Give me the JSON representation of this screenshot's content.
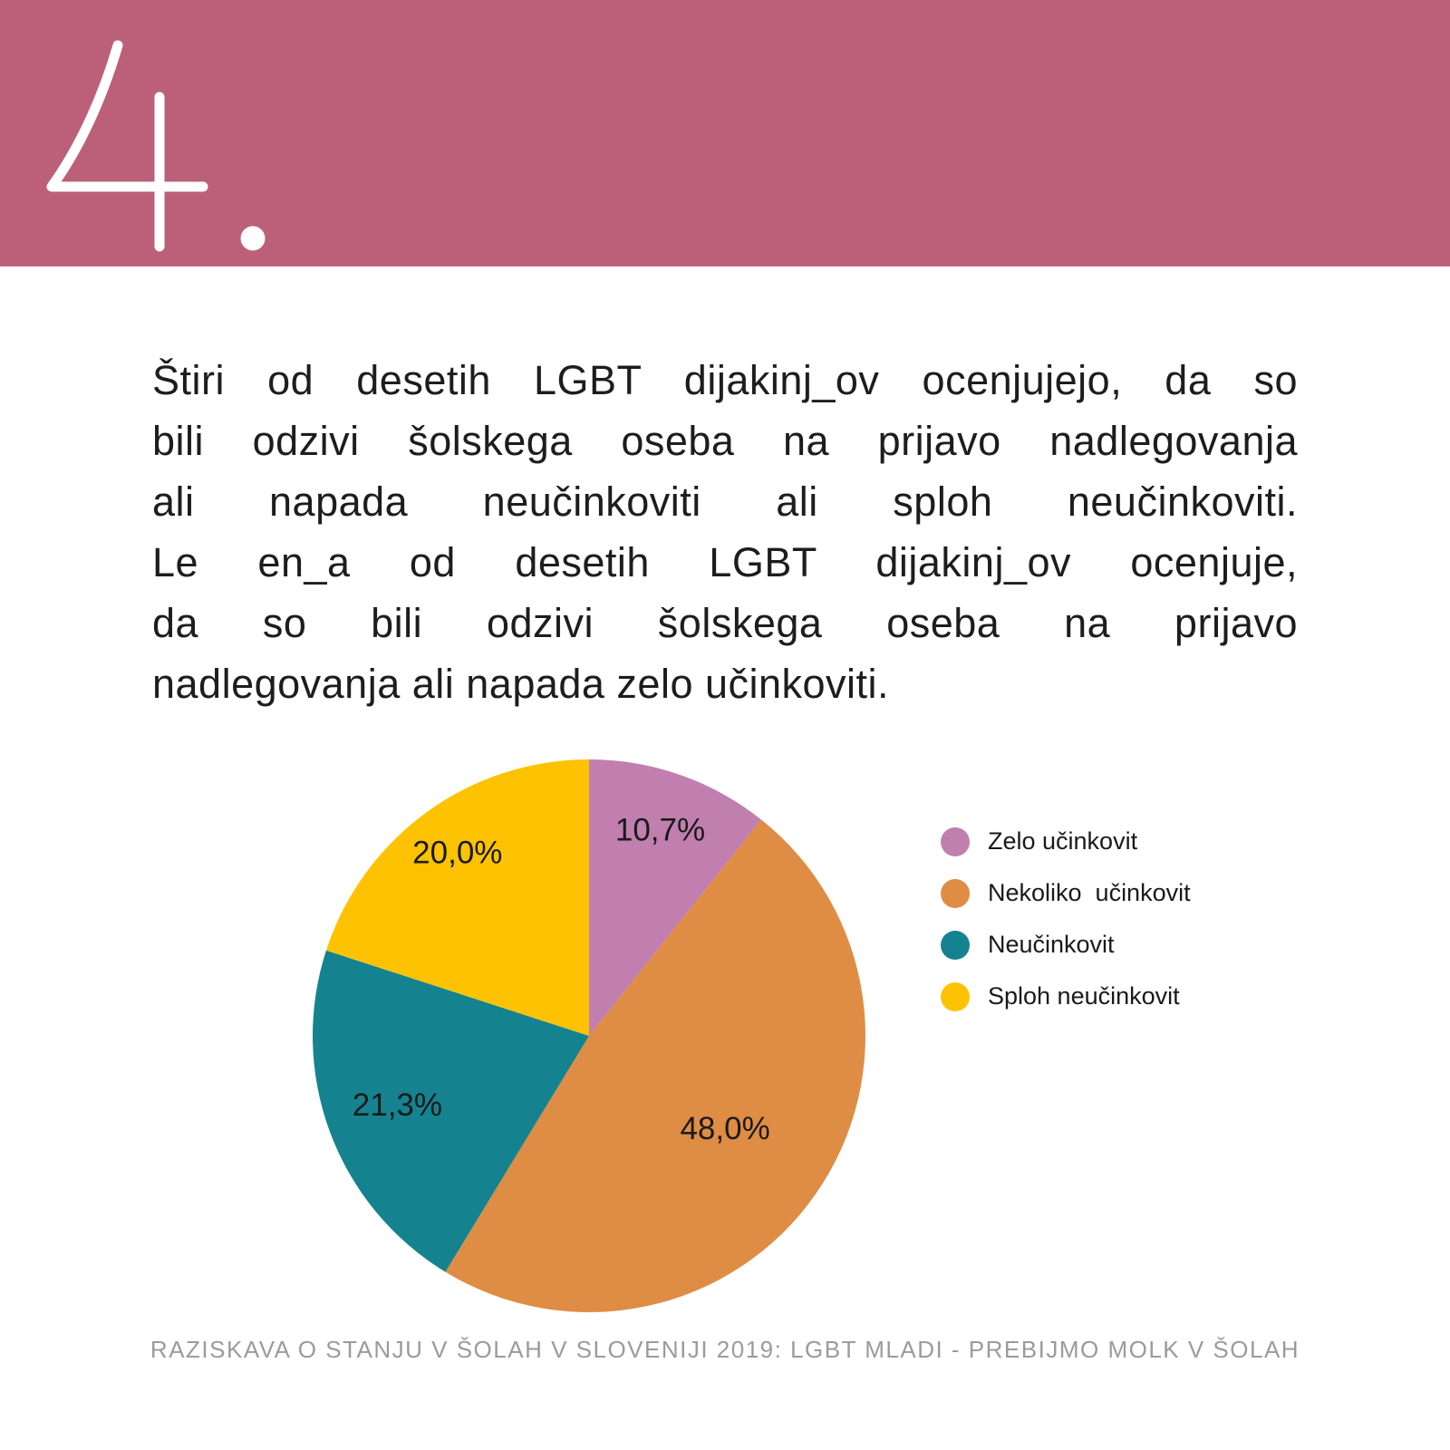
{
  "header": {
    "section_number": "4."
  },
  "body": {
    "lines": [
      "Štiri od desetih LGBT dijakinj_ov ocenjujejo, da so",
      "bili odzivi šolskega oseba na prijavo nadlegovanja",
      "ali napada neučinkoviti ali sploh neučinkoviti.",
      "Le en_a od desetih LGBT dijakinj_ov ocenjuje,",
      "da so bili odzivi šolskega oseba na prijavo",
      "nadlegovanja ali napada zelo učinkoviti."
    ]
  },
  "chart_data": {
    "type": "pie",
    "title": "",
    "direction": "clockwise",
    "start_angle_deg": 0,
    "legend_position": "right",
    "slices": [
      {
        "label": "Zelo učinkovit",
        "value": 10.7,
        "display": "10,7%",
        "color": "#c07fae",
        "label_radius": 0.78
      },
      {
        "label": "Nekoliko  učinkovit",
        "value": 48.0,
        "display": "48,0%",
        "color": "#df8c45",
        "label_radius": 0.6
      },
      {
        "label": "Neučinkovit",
        "value": 21.3,
        "display": "21,3%",
        "color": "#14838f",
        "label_radius": 0.74
      },
      {
        "label": "Sploh neučinkovit",
        "value": 20.0,
        "display": "20,0%",
        "color": "#fdc303",
        "label_radius": 0.81
      }
    ]
  },
  "footer": {
    "text": "RAZISKAVA O STANJU V ŠOLAH V SLOVENIJI 2019: LGBT MLADI - PREBIJMO MOLK V ŠOLAH"
  },
  "colors": {
    "band": "#bc6079",
    "numeral": "#ffffff",
    "body_text": "#1d1d1d",
    "footer_text": "#9b9b9b"
  }
}
